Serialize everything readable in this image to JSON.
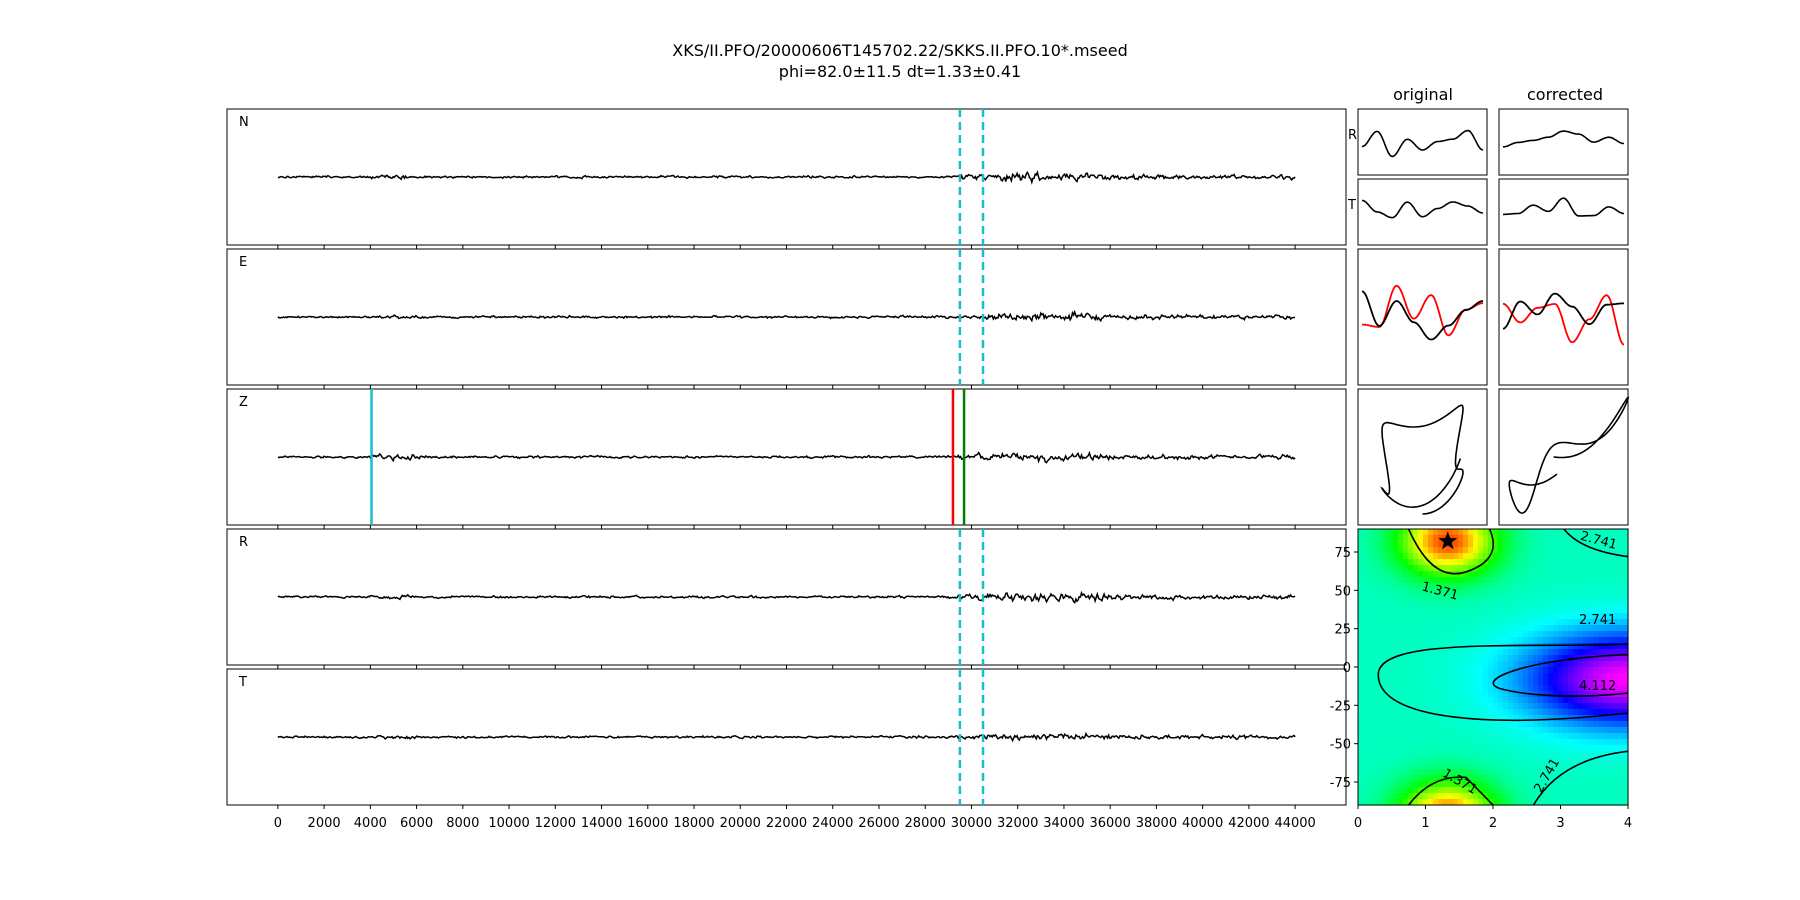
{
  "figure": {
    "title_line1": "XKS/II.PFO/20000606T145702.22/SKKS.II.PFO.10*.mseed",
    "title_line2": "phi=82.0±11.5 dt=1.33±0.41"
  },
  "chart_data": [
    {
      "type": "line",
      "name": "traces",
      "panels": [
        "N",
        "E",
        "Z",
        "R",
        "T"
      ],
      "xlim": [
        -2200,
        46200
      ],
      "x_ticks": [
        0,
        2000,
        4000,
        6000,
        8000,
        10000,
        12000,
        14000,
        16000,
        18000,
        20000,
        22000,
        24000,
        26000,
        28000,
        30000,
        32000,
        34000,
        36000,
        38000,
        40000,
        42000,
        44000
      ],
      "trace_range": [
        0,
        44000
      ],
      "window_lines": {
        "x": [
          29500,
          30500
        ],
        "color": "#17becf",
        "style": "dashed",
        "panels": [
          "N",
          "E",
          "R",
          "T"
        ]
      },
      "pick_lines": [
        {
          "x": 4050,
          "color": "#17becf",
          "panel": "Z"
        },
        {
          "x": 29200,
          "color": "#ff0000",
          "panel": "Z"
        },
        {
          "x": 29680,
          "color": "#008000",
          "panel": "Z"
        }
      ],
      "trace_color": "#000000"
    },
    {
      "type": "line",
      "name": "particle-motion",
      "columns": [
        "original",
        "corrected"
      ],
      "row_labels": [
        "R",
        "T"
      ],
      "overlay_colors": [
        "#ff0000",
        "#000000"
      ],
      "hodogram_color": "#000000"
    },
    {
      "type": "heatmap",
      "name": "grid-search",
      "xlim": [
        0,
        4
      ],
      "ylim": [
        -90,
        90
      ],
      "x_ticks": [
        0,
        1,
        2,
        3,
        4
      ],
      "y_ticks": [
        75,
        50,
        25,
        0,
        -25,
        -50,
        -75
      ],
      "contour_levels": [
        1.371,
        2.741,
        4.112
      ],
      "contour_labels": [
        "1.371",
        "2.741",
        "4.112"
      ],
      "best": {
        "dt": 1.33,
        "phi": 82.0
      },
      "colormap": "hsv"
    }
  ]
}
